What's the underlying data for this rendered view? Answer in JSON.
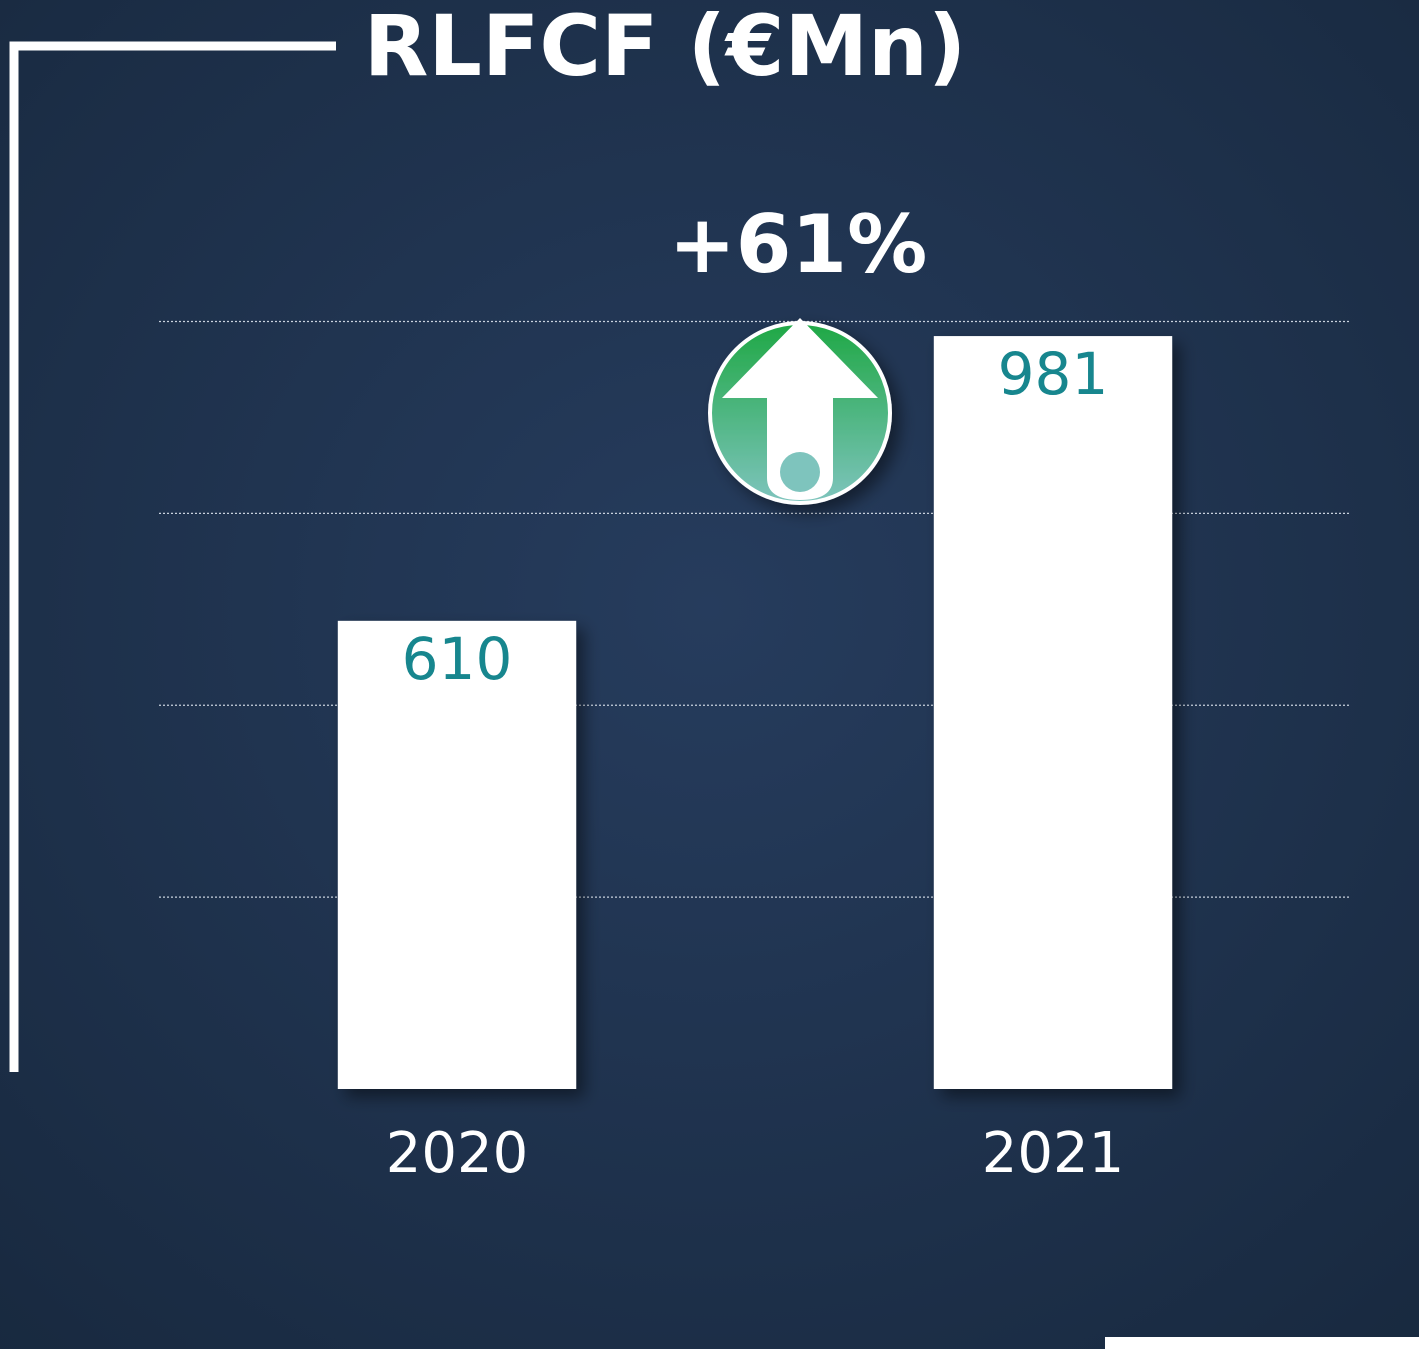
{
  "chart_data": {
    "type": "bar",
    "title": "RLFCF (€Mn)",
    "categories": [
      "2020",
      "2021"
    ],
    "values": [
      610,
      981
    ],
    "color": "#ffffff",
    "value_label_color": "#17868e",
    "ylim": [
      0,
      1000
    ],
    "yticks": [
      250,
      500,
      750,
      1000
    ],
    "grid": true,
    "annotation": "+61%"
  }
}
